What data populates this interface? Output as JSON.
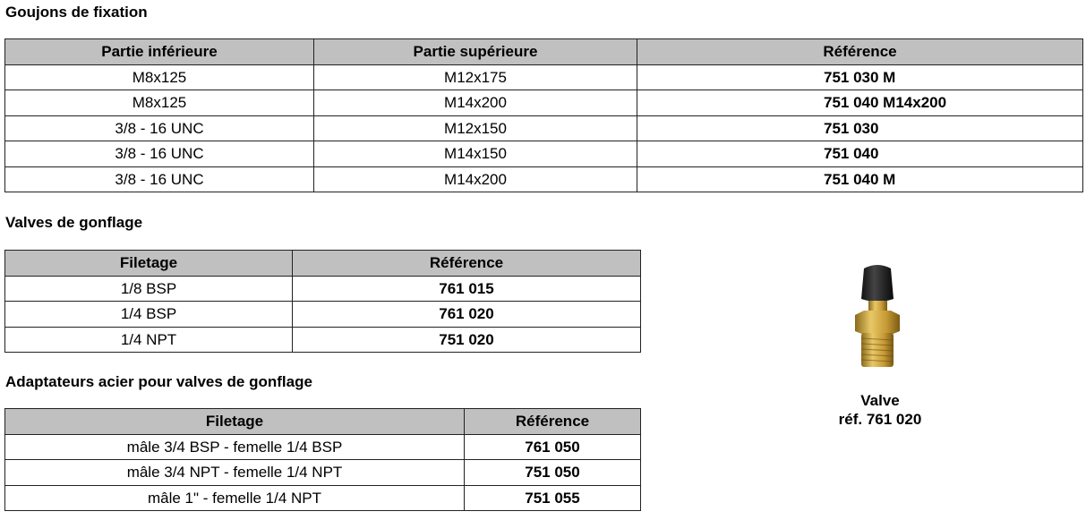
{
  "fixation": {
    "title": "Goujons de fixation",
    "headers": [
      "Partie inférieure",
      "Partie supérieure",
      "Référence"
    ],
    "rows": [
      [
        "M8x125",
        "M12x175",
        "751 030 M"
      ],
      [
        "M8x125",
        "M14x200",
        "751 040 M14x200"
      ],
      [
        "3/8 - 16 UNC",
        "M12x150",
        "751 030"
      ],
      [
        "3/8 - 16 UNC",
        "M14x150",
        "751 040"
      ],
      [
        "3/8 - 16 UNC",
        "M14x200",
        "751 040 M"
      ]
    ]
  },
  "valves": {
    "title": "Valves de gonflage",
    "headers": [
      "Filetage",
      "Référence"
    ],
    "rows": [
      [
        "1/8 BSP",
        "761 015"
      ],
      [
        "1/4 BSP",
        "761 020"
      ],
      [
        "1/4 NPT",
        "751 020"
      ]
    ]
  },
  "adaptateurs": {
    "title": "Adaptateurs acier pour valves de gonflage",
    "headers": [
      "Filetage",
      "Référence"
    ],
    "rows": [
      [
        "mâle 3/4 BSP - femelle 1/4 BSP",
        "761 050"
      ],
      [
        "mâle 3/4 NPT - femelle 1/4 NPT",
        "751 050"
      ],
      [
        "mâle 1\" - femelle 1/4 NPT",
        "751 055"
      ]
    ]
  },
  "photo": {
    "caption_line1": "Valve",
    "caption_line2": "réf. 761 020"
  }
}
